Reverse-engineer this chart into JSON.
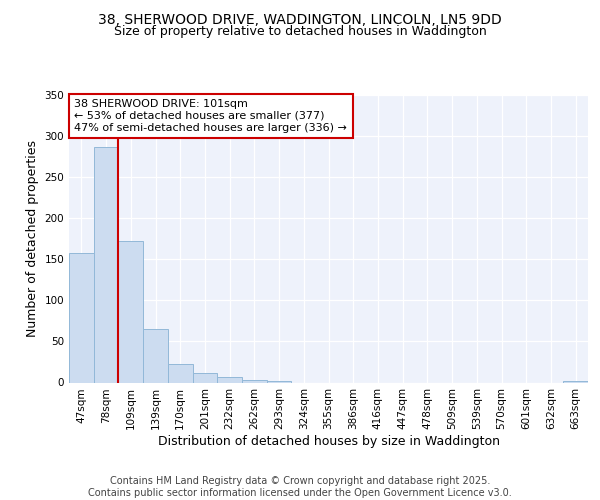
{
  "title_line1": "38, SHERWOOD DRIVE, WADDINGTON, LINCOLN, LN5 9DD",
  "title_line2": "Size of property relative to detached houses in Waddington",
  "xlabel": "Distribution of detached houses by size in Waddington",
  "ylabel": "Number of detached properties",
  "categories": [
    "47sqm",
    "78sqm",
    "109sqm",
    "139sqm",
    "170sqm",
    "201sqm",
    "232sqm",
    "262sqm",
    "293sqm",
    "324sqm",
    "355sqm",
    "386sqm",
    "416sqm",
    "447sqm",
    "478sqm",
    "509sqm",
    "539sqm",
    "570sqm",
    "601sqm",
    "632sqm",
    "663sqm"
  ],
  "values": [
    158,
    287,
    172,
    65,
    23,
    11,
    7,
    3,
    2,
    0,
    0,
    0,
    0,
    0,
    0,
    0,
    0,
    0,
    0,
    0,
    2
  ],
  "bar_color": "#ccdcf0",
  "bar_edge_color": "#92b8d8",
  "vline_color": "#cc0000",
  "vline_x": 1.5,
  "annotation_box_text": "38 SHERWOOD DRIVE: 101sqm\n← 53% of detached houses are smaller (377)\n47% of semi-detached houses are larger (336) →",
  "annotation_box_edge_color": "#cc0000",
  "ylim": [
    0,
    350
  ],
  "yticks": [
    0,
    50,
    100,
    150,
    200,
    250,
    300,
    350
  ],
  "plot_bg_color": "#eef2fb",
  "footer_text": "Contains HM Land Registry data © Crown copyright and database right 2025.\nContains public sector information licensed under the Open Government Licence v3.0.",
  "title_fontsize": 10,
  "subtitle_fontsize": 9,
  "ylabel_fontsize": 9,
  "xlabel_fontsize": 9,
  "tick_fontsize": 7.5,
  "ann_fontsize": 8,
  "footer_fontsize": 7
}
